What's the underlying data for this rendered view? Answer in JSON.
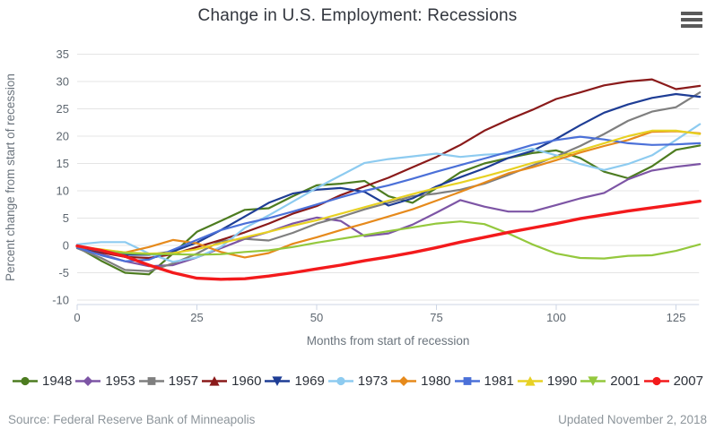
{
  "header": {
    "title": "Change in U.S. Employment: Recessions",
    "menu_icon": "hamburger-icon"
  },
  "footer": {
    "source": "Source: Federal Reserve Bank of Minneapolis",
    "updated": "Updated November 2, 2018"
  },
  "chart_data": {
    "type": "line",
    "title": "Change in U.S. Employment: Recessions",
    "xlabel": "Months from start of recession",
    "ylabel": "Percent change from start of recession",
    "xlim": [
      0,
      130
    ],
    "ylim": [
      -10,
      35
    ],
    "xticks": [
      0,
      25,
      50,
      75,
      100,
      125
    ],
    "yticks": [
      35,
      30,
      25,
      20,
      15,
      10,
      5,
      0,
      -5,
      -10
    ],
    "grid": "horizontal-only",
    "legend_position": "bottom",
    "gridline_color": "#e4e4e4",
    "axis_line_color": "#ccd6e6",
    "x": [
      0,
      5,
      10,
      15,
      20,
      25,
      30,
      35,
      40,
      45,
      50,
      55,
      60,
      65,
      70,
      75,
      80,
      85,
      90,
      95,
      100,
      105,
      110,
      115,
      120,
      125,
      130
    ],
    "series": [
      {
        "name": "1948",
        "color": "#4d7c20",
        "marker": "circle",
        "line_width": 2.2,
        "values": [
          -0.3,
          -2.8,
          -5.0,
          -5.3,
          -1.5,
          2.5,
          4.5,
          6.5,
          6.8,
          9.0,
          11.0,
          11.3,
          11.8,
          9.0,
          7.8,
          10.5,
          13.4,
          15.0,
          16.0,
          16.9,
          17.4,
          16.0,
          13.5,
          12.3,
          14.5,
          17.5,
          18.3
        ]
      },
      {
        "name": "1953",
        "color": "#7d55a5",
        "marker": "diamond",
        "line_width": 2.2,
        "values": [
          -0.4,
          -1.6,
          -2.9,
          -3.8,
          -3.6,
          -2.2,
          -0.5,
          1.2,
          2.5,
          4.0,
          5.1,
          4.5,
          1.7,
          2.2,
          3.8,
          6.0,
          8.3,
          7.1,
          6.2,
          6.2,
          7.4,
          8.6,
          9.6,
          12.1,
          13.7,
          14.4,
          14.9
        ]
      },
      {
        "name": "1957",
        "color": "#7f7f7f",
        "marker": "square",
        "line_width": 2.2,
        "values": [
          -0.5,
          -2.3,
          -4.5,
          -4.7,
          -3.3,
          -1.5,
          0.8,
          1.2,
          0.9,
          2.3,
          4.0,
          5.2,
          6.6,
          7.8,
          9.0,
          9.5,
          10.2,
          11.3,
          12.9,
          14.6,
          16.3,
          18.2,
          20.4,
          22.8,
          24.5,
          25.3,
          28.0
        ]
      },
      {
        "name": "1960",
        "color": "#8a1a1a",
        "marker": "triangle",
        "line_width": 2.2,
        "values": [
          -0.4,
          -1.3,
          -2.1,
          -2.3,
          -1.6,
          -0.3,
          1.0,
          2.4,
          4.0,
          5.8,
          7.2,
          9.2,
          10.8,
          12.4,
          14.3,
          16.2,
          18.4,
          21.0,
          23.0,
          24.8,
          26.8,
          28.0,
          29.3,
          30.0,
          30.4,
          28.6,
          29.2
        ]
      },
      {
        "name": "1969",
        "color": "#1e3d95",
        "marker": "triangle-down",
        "line_width": 2.2,
        "values": [
          -0.3,
          -1.1,
          -1.7,
          -1.7,
          -1.1,
          0.5,
          2.8,
          5.3,
          7.8,
          9.5,
          10.2,
          10.5,
          9.8,
          7.3,
          8.6,
          10.8,
          12.5,
          14.1,
          16.0,
          17.3,
          19.5,
          22.0,
          24.3,
          25.8,
          27.0,
          27.7,
          27.2
        ]
      },
      {
        "name": "1973",
        "color": "#8dcbf0",
        "marker": "circle",
        "line_width": 2.2,
        "values": [
          0.2,
          0.6,
          0.6,
          -1.5,
          -3.0,
          -2.2,
          -0.3,
          3.2,
          5.5,
          8.0,
          10.5,
          12.8,
          15.1,
          15.8,
          16.3,
          16.8,
          16.2,
          16.6,
          16.8,
          17.7,
          16.5,
          14.9,
          13.8,
          14.9,
          16.5,
          19.3,
          22.2
        ]
      },
      {
        "name": "1980",
        "color": "#e68a1c",
        "marker": "diamond",
        "line_width": 2.2,
        "values": [
          -0.3,
          -0.8,
          -1.3,
          -0.3,
          1.0,
          0.4,
          -1.2,
          -2.2,
          -1.4,
          0.3,
          1.5,
          2.8,
          4.0,
          5.3,
          6.6,
          8.2,
          9.8,
          11.5,
          13.2,
          14.3,
          15.6,
          17.0,
          18.2,
          19.3,
          20.8,
          20.9,
          20.5
        ]
      },
      {
        "name": "1981",
        "color": "#4b70d8",
        "marker": "square",
        "line_width": 2.2,
        "values": [
          -0.4,
          -1.8,
          -2.9,
          -2.6,
          -0.8,
          1.0,
          2.8,
          4.0,
          5.0,
          6.2,
          7.5,
          8.8,
          10.0,
          11.0,
          12.2,
          13.5,
          14.7,
          15.9,
          17.1,
          18.4,
          19.3,
          19.9,
          19.4,
          18.7,
          18.4,
          18.5,
          18.7
        ]
      },
      {
        "name": "1990",
        "color": "#e7d123",
        "marker": "triangle",
        "line_width": 2.2,
        "values": [
          -0.2,
          -0.7,
          -1.3,
          -1.5,
          -1.4,
          -0.7,
          0.4,
          1.5,
          2.5,
          3.6,
          4.6,
          5.8,
          7.0,
          8.2,
          9.4,
          10.5,
          11.5,
          12.6,
          13.8,
          15.1,
          16.1,
          17.4,
          18.7,
          20.0,
          21.0,
          21.0,
          20.4
        ]
      },
      {
        "name": "2001",
        "color": "#94c83d",
        "marker": "triangle-down",
        "line_width": 2.2,
        "values": [
          -0.2,
          -1.0,
          -1.4,
          -1.6,
          -1.6,
          -1.7,
          -1.6,
          -1.2,
          -0.9,
          -0.3,
          0.5,
          1.2,
          1.9,
          2.6,
          3.3,
          4.0,
          4.4,
          3.9,
          2.2,
          0.2,
          -1.5,
          -2.3,
          -2.4,
          -1.9,
          -1.8,
          -1.0,
          0.2
        ]
      },
      {
        "name": "2007",
        "color": "#f31a1c",
        "marker": "circle",
        "line_width": 3.4,
        "values": [
          -0.1,
          -0.9,
          -2.0,
          -3.6,
          -5.0,
          -6.0,
          -6.2,
          -6.1,
          -5.6,
          -5.0,
          -4.3,
          -3.6,
          -2.8,
          -2.1,
          -1.3,
          -0.4,
          0.6,
          1.5,
          2.4,
          3.2,
          4.0,
          4.9,
          5.6,
          6.3,
          6.9,
          7.5,
          8.1
        ]
      }
    ]
  }
}
